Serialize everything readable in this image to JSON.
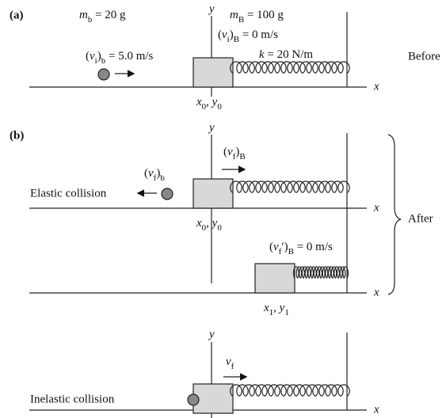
{
  "panel_a": {
    "label": "(a)",
    "mass_ball": [
      "m",
      "b",
      " = 20 g"
    ],
    "mass_block": [
      "m",
      "B",
      " = 100 g"
    ],
    "vel_block": [
      "(",
      "v",
      "i",
      ")",
      "B",
      " = 0 m/s"
    ],
    "vel_ball": [
      "(",
      "v",
      "i",
      ")",
      "b",
      " = 5.0 m/s"
    ],
    "spring": [
      "k",
      " = 20 N/m"
    ],
    "stage": "Before",
    "y_axis": "y",
    "x_axis": "x",
    "origin": [
      "x",
      "0",
      ", ",
      "y",
      "0"
    ]
  },
  "panel_b": {
    "label": "(b)",
    "stage": "After",
    "elastic": {
      "caption": "Elastic collision",
      "vel_block": [
        "(",
        "v",
        "f",
        ")",
        "B"
      ],
      "vel_ball": [
        "(",
        "v",
        "f",
        ")",
        "b"
      ],
      "y_axis": "y",
      "x_axis": "x",
      "origin": [
        "x",
        "0",
        ", ",
        "y",
        "0"
      ]
    },
    "compressed": {
      "vel_block": [
        "(",
        "v",
        "f",
        "′",
        ")",
        "B",
        " = 0 m/s"
      ],
      "x_axis": "x",
      "position": [
        "x",
        "1",
        ", ",
        "y",
        "1"
      ]
    },
    "inelastic": {
      "caption": "Inelastic collision",
      "velocity": [
        "v",
        "f"
      ],
      "y_axis": "y",
      "x_axis": "x"
    }
  }
}
